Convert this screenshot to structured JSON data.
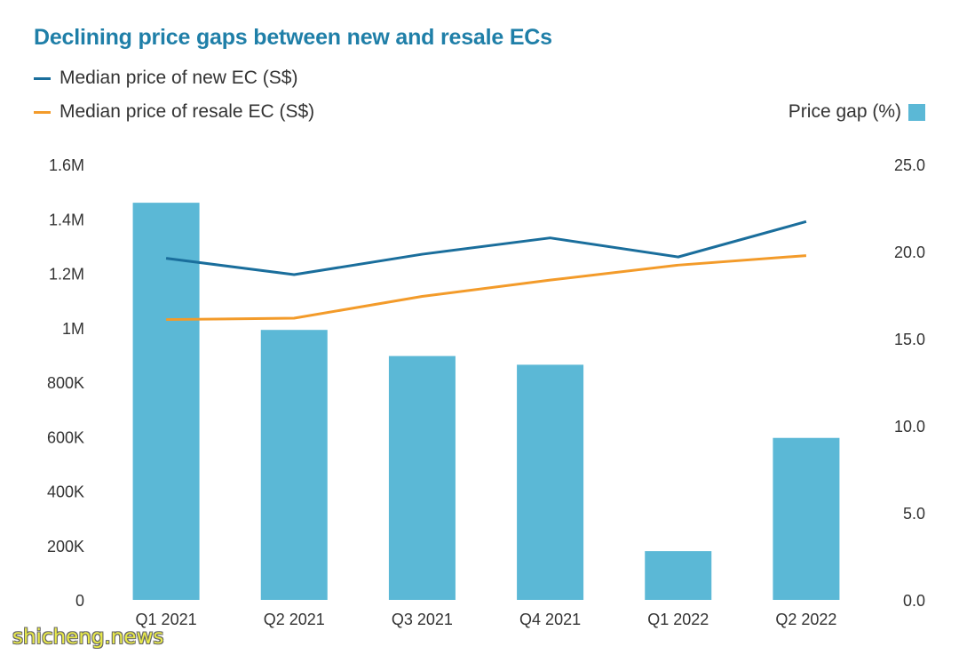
{
  "chart_data": {
    "type": "bar",
    "title": "Declining price gaps between new and resale ECs",
    "categories": [
      "Q1 2021",
      "Q2 2021",
      "Q3 2021",
      "Q4 2021",
      "Q1 2022",
      "Q2 2022"
    ],
    "series": [
      {
        "name": "Median price of new EC (S$)",
        "type": "line",
        "axis": "left",
        "color": "#1a6e9c",
        "values": [
          1255000,
          1195000,
          1270000,
          1330000,
          1260000,
          1390000
        ]
      },
      {
        "name": "Median price of resale EC (S$)",
        "type": "line",
        "axis": "left",
        "color": "#f39b2a",
        "values": [
          1030000,
          1035000,
          1115000,
          1175000,
          1230000,
          1265000
        ]
      },
      {
        "name": "Price gap (%)",
        "type": "bar",
        "axis": "right",
        "color": "#5bb8d6",
        "values": [
          22.8,
          15.5,
          14.0,
          13.5,
          2.8,
          9.3
        ]
      }
    ],
    "yaxis_left": {
      "ylim": [
        0,
        1600000
      ],
      "ticks": [
        0,
        200000,
        400000,
        600000,
        800000,
        1000000,
        1200000,
        1400000,
        1600000
      ],
      "tick_labels": [
        "0",
        "200K",
        "400K",
        "600K",
        "800K",
        "1M",
        "1.2M",
        "1.4M",
        "1.6M"
      ]
    },
    "yaxis_right": {
      "ylim": [
        0,
        25
      ],
      "ticks": [
        0,
        5,
        10,
        15,
        20,
        25
      ],
      "tick_labels": [
        "0.0",
        "5.0",
        "10.0",
        "15.0",
        "20.0",
        "25.0"
      ]
    },
    "grid": false,
    "legend": "top"
  },
  "watermark": "shicheng.news"
}
